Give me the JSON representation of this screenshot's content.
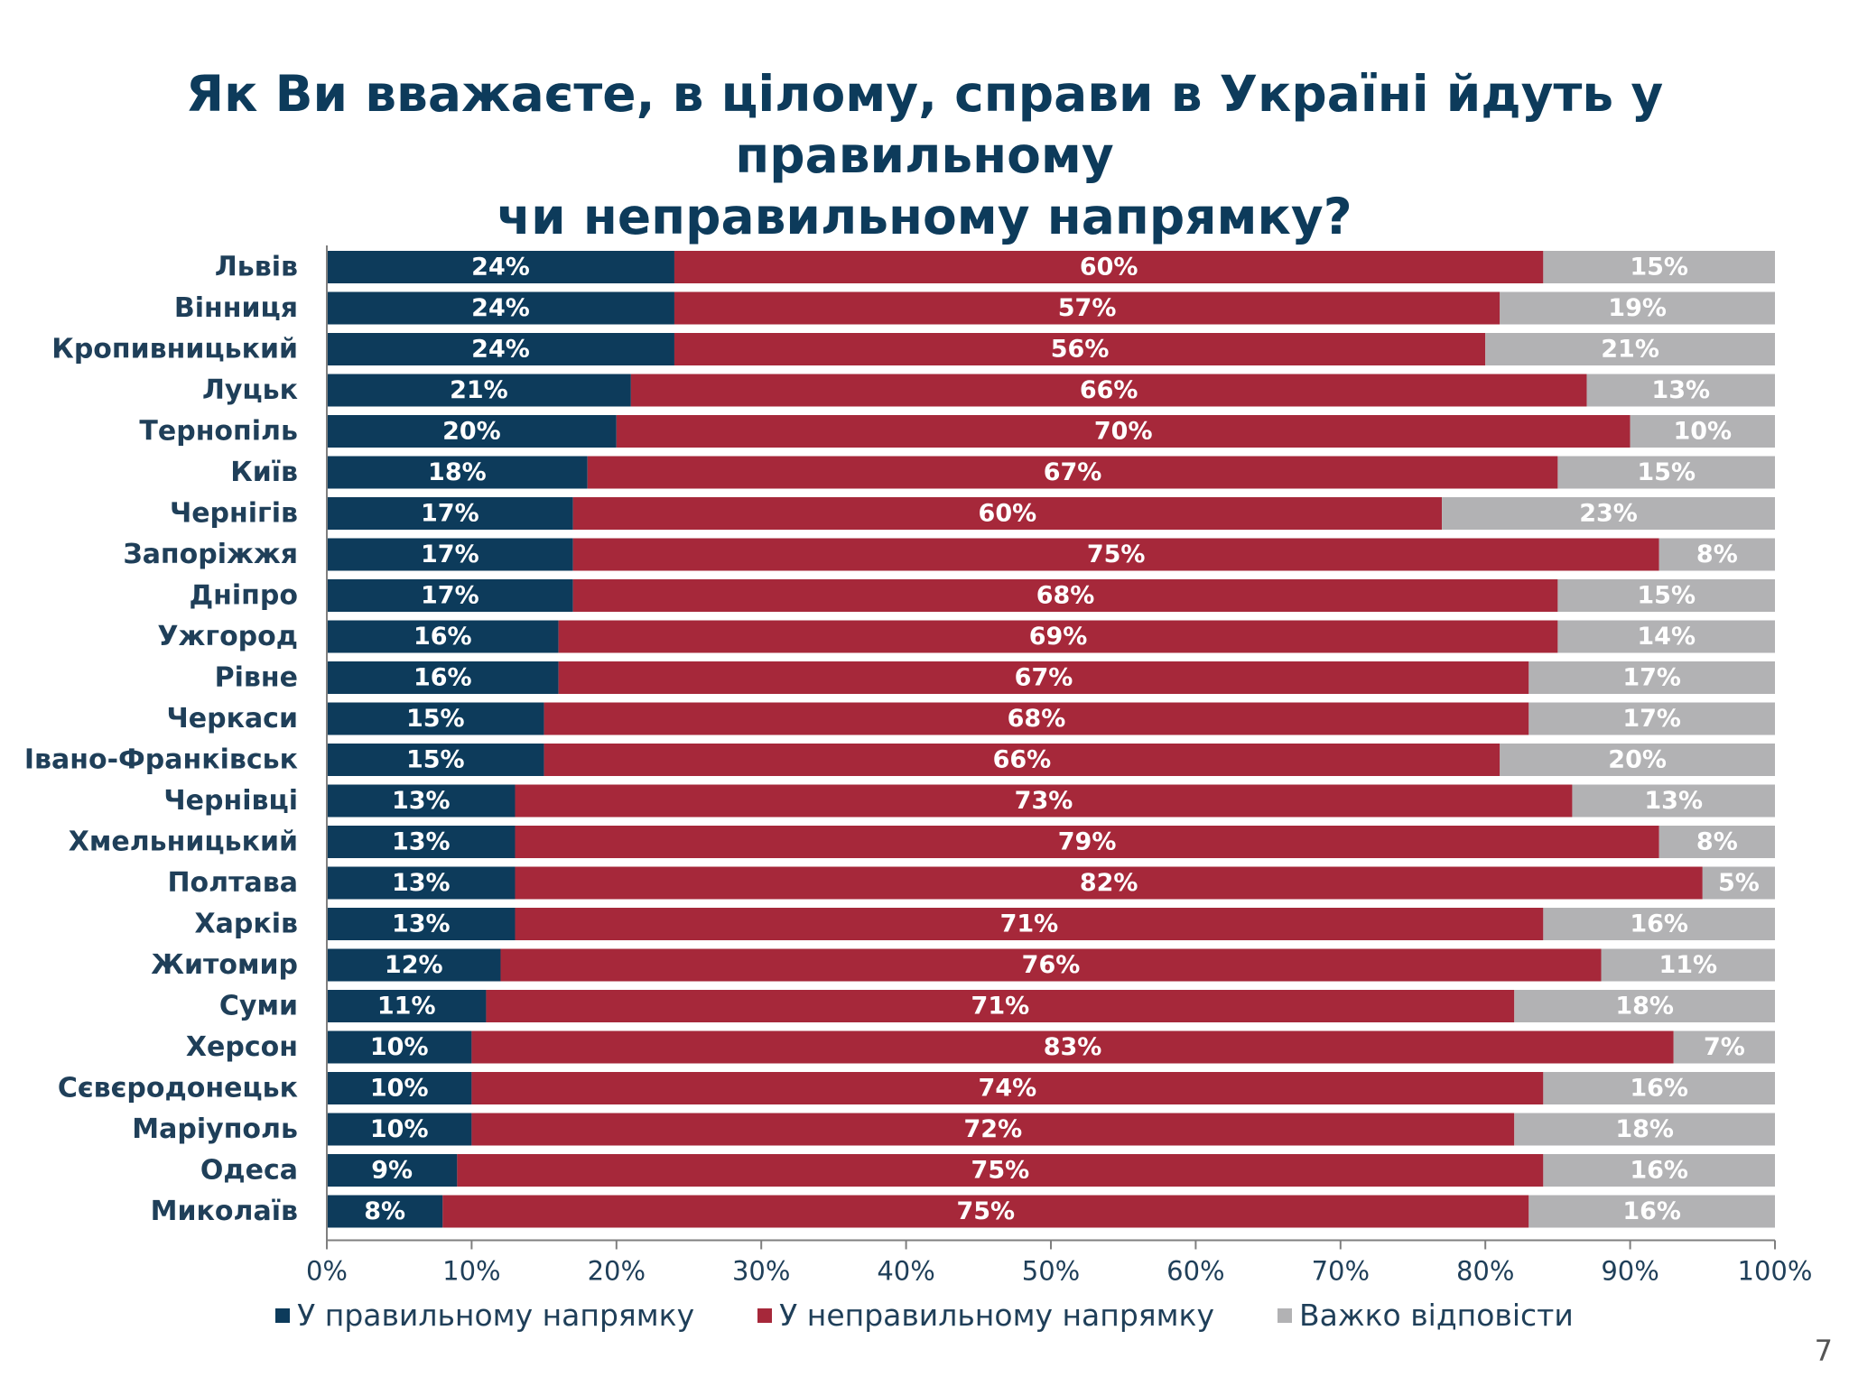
{
  "title": {
    "line1": "Як Ви вважаєте, в цілому, справи в Україні йдуть у правильному",
    "line2": "чи неправильному напрямку?"
  },
  "page_number": "7",
  "colors": {
    "right": "#0d3b5b",
    "wrong": "#a6283a",
    "hard": "#b2b2b4",
    "label_on_dark": "#ffffff",
    "label_on_grey": "#ffffff",
    "axis_text": "#1f3f59"
  },
  "legend": [
    {
      "label": "У правильному напрямку",
      "color": "#0d3b5b"
    },
    {
      "label": "У неправильному напрямку",
      "color": "#a6283a"
    },
    {
      "label": "Важко відповісти",
      "color": "#b2b2b4"
    }
  ],
  "chart_data": {
    "type": "bar",
    "orientation": "horizontal",
    "stacked": true,
    "categories": [
      "Львів",
      "Вінниця",
      "Кропивницький",
      "Луцьк",
      "Тернопіль",
      "Київ",
      "Чернігів",
      "Запоріжжя",
      "Дніпро",
      "Ужгород",
      "Рівне",
      "Черкаси",
      "Івано-Франківськ",
      "Чернівці",
      "Хмельницький",
      "Полтава",
      "Харків",
      "Житомир",
      "Суми",
      "Херсон",
      "Сєвєродонецьк",
      "Маріуполь",
      "Одеса",
      "Миколаїв"
    ],
    "series": [
      {
        "name": "У правильному напрямку",
        "values": [
          24,
          24,
          24,
          21,
          20,
          18,
          17,
          17,
          17,
          16,
          16,
          15,
          15,
          13,
          13,
          13,
          13,
          12,
          11,
          10,
          10,
          10,
          9,
          8
        ]
      },
      {
        "name": "У неправильному напрямку",
        "values": [
          60,
          57,
          56,
          66,
          70,
          67,
          60,
          75,
          68,
          69,
          67,
          68,
          66,
          73,
          79,
          82,
          71,
          76,
          71,
          83,
          74,
          72,
          75,
          75
        ]
      },
      {
        "name": "Важко відповісти",
        "values": [
          15,
          19,
          21,
          13,
          10,
          15,
          23,
          8,
          15,
          14,
          17,
          17,
          20,
          13,
          8,
          5,
          16,
          11,
          18,
          7,
          16,
          18,
          16,
          16
        ]
      }
    ],
    "xlim": [
      0,
      100
    ],
    "x_ticks": [
      "0%",
      "10%",
      "20%",
      "30%",
      "40%",
      "50%",
      "60%",
      "70%",
      "80%",
      "90%",
      "100%"
    ],
    "value_suffix": "%",
    "grid": false,
    "legend_position": "bottom"
  }
}
